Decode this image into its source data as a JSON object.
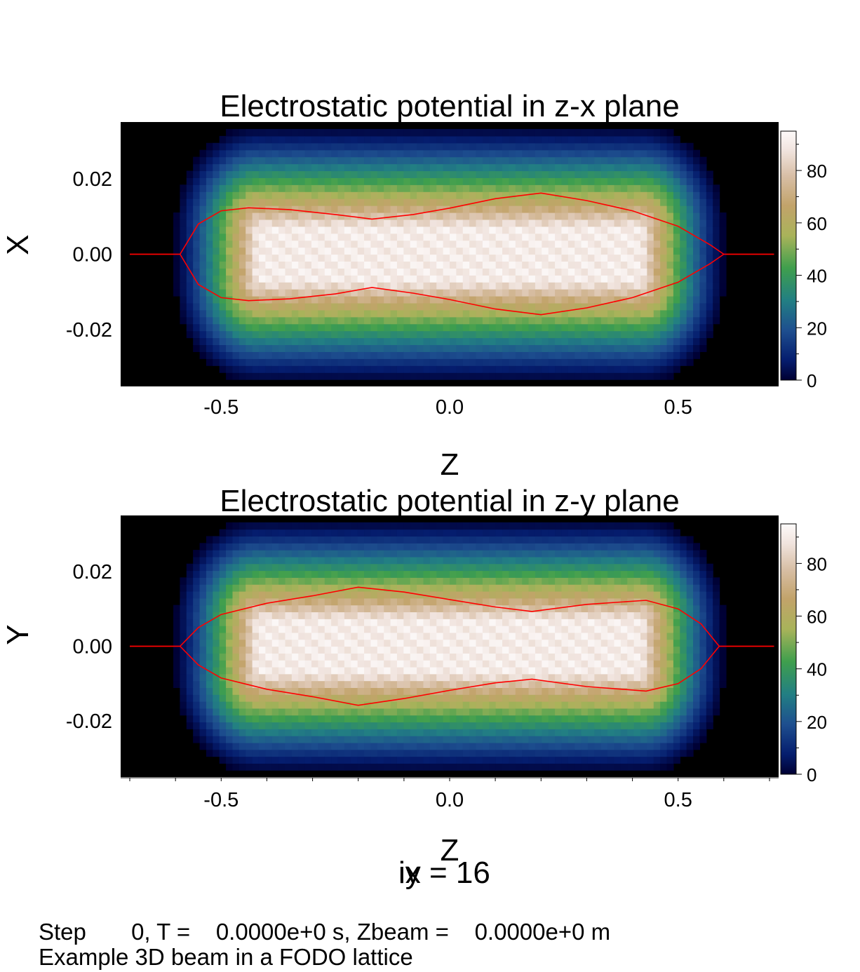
{
  "chart_data": [
    {
      "type": "heatmap",
      "title": "Electrostatic potential in z-x plane",
      "xlabel": "Z",
      "ylabel": "X",
      "xlim": [
        -0.72,
        0.72
      ],
      "ylim": [
        -0.035,
        0.035
      ],
      "x_ticks": [
        -0.5,
        0.0,
        0.5
      ],
      "x_tick_labels": [
        "-0.5",
        "0.0",
        "0.5"
      ],
      "y_ticks": [
        0.02,
        0.0,
        -0.02
      ],
      "y_tick_labels": [
        "0.02",
        "0.00",
        "-0.02"
      ],
      "colorbar": {
        "min": 0,
        "max": 95,
        "ticks": [
          0,
          20,
          40,
          60,
          80
        ],
        "tick_labels": [
          "0",
          "20",
          "40",
          "60",
          "80"
        ]
      },
      "field": {
        "peak": 94,
        "z_half_length": 0.6,
        "core_z_half_length": 0.42,
        "core_x_half_width": 0.007,
        "edge_x_half_width": 0.034
      },
      "contour": {
        "color": "#ff0000",
        "upper": [
          [
            -0.7,
            0.0
          ],
          [
            -0.59,
            0.0
          ],
          [
            -0.55,
            0.008
          ],
          [
            -0.5,
            0.0115
          ],
          [
            -0.44,
            0.0123
          ],
          [
            -0.35,
            0.0118
          ],
          [
            -0.25,
            0.0105
          ],
          [
            -0.17,
            0.0093
          ],
          [
            -0.08,
            0.0105
          ],
          [
            0.0,
            0.0122
          ],
          [
            0.1,
            0.0147
          ],
          [
            0.2,
            0.0162
          ],
          [
            0.3,
            0.0142
          ],
          [
            0.4,
            0.0115
          ],
          [
            0.5,
            0.0074
          ],
          [
            0.57,
            0.0025
          ],
          [
            0.6,
            0.0
          ],
          [
            0.71,
            0.0
          ]
        ],
        "lower": [
          [
            -0.7,
            0.0
          ],
          [
            -0.59,
            0.0
          ],
          [
            -0.55,
            -0.008
          ],
          [
            -0.5,
            -0.0115
          ],
          [
            -0.44,
            -0.0123
          ],
          [
            -0.35,
            -0.0118
          ],
          [
            -0.25,
            -0.0105
          ],
          [
            -0.17,
            -0.0088
          ],
          [
            -0.08,
            -0.0103
          ],
          [
            0.0,
            -0.012
          ],
          [
            0.1,
            -0.0145
          ],
          [
            0.2,
            -0.016
          ],
          [
            0.3,
            -0.0142
          ],
          [
            0.4,
            -0.0115
          ],
          [
            0.5,
            -0.0074
          ],
          [
            0.57,
            -0.0025
          ],
          [
            0.6,
            0.0
          ],
          [
            0.71,
            0.0
          ]
        ]
      }
    },
    {
      "type": "heatmap",
      "title": "Electrostatic potential in z-y plane",
      "xlabel": "Z",
      "ylabel": "Y",
      "xlim": [
        -0.72,
        0.72
      ],
      "ylim": [
        -0.035,
        0.035
      ],
      "x_ticks": [
        -0.5,
        0.0,
        0.5
      ],
      "x_tick_labels": [
        "-0.5",
        "0.0",
        "0.5"
      ],
      "y_ticks": [
        0.02,
        0.0,
        -0.02
      ],
      "y_tick_labels": [
        "0.02",
        "0.00",
        "-0.02"
      ],
      "colorbar": {
        "min": 0,
        "max": 95,
        "ticks": [
          0,
          20,
          40,
          60,
          80
        ],
        "tick_labels": [
          "0",
          "20",
          "40",
          "60",
          "80"
        ]
      },
      "field": {
        "peak": 94,
        "z_half_length": 0.6,
        "core_z_half_length": 0.42,
        "core_x_half_width": 0.007,
        "edge_x_half_width": 0.034
      },
      "contour": {
        "color": "#ff0000",
        "upper": [
          [
            -0.7,
            0.0
          ],
          [
            -0.59,
            0.0
          ],
          [
            -0.55,
            0.005
          ],
          [
            -0.5,
            0.0085
          ],
          [
            -0.4,
            0.0115
          ],
          [
            -0.3,
            0.0135
          ],
          [
            -0.2,
            0.0158
          ],
          [
            -0.1,
            0.0145
          ],
          [
            0.0,
            0.0125
          ],
          [
            0.1,
            0.0105
          ],
          [
            0.18,
            0.0093
          ],
          [
            0.3,
            0.0112
          ],
          [
            0.43,
            0.0123
          ],
          [
            0.5,
            0.01
          ],
          [
            0.55,
            0.006
          ],
          [
            0.59,
            0.0
          ],
          [
            0.71,
            0.0
          ]
        ],
        "lower": [
          [
            -0.7,
            0.0
          ],
          [
            -0.59,
            0.0
          ],
          [
            -0.55,
            -0.005
          ],
          [
            -0.5,
            -0.0085
          ],
          [
            -0.4,
            -0.0115
          ],
          [
            -0.3,
            -0.0135
          ],
          [
            -0.2,
            -0.0158
          ],
          [
            -0.1,
            -0.014
          ],
          [
            0.0,
            -0.0118
          ],
          [
            0.1,
            -0.0098
          ],
          [
            0.18,
            -0.0088
          ],
          [
            0.3,
            -0.0108
          ],
          [
            0.43,
            -0.012
          ],
          [
            0.5,
            -0.01
          ],
          [
            0.55,
            -0.006
          ],
          [
            0.59,
            0.0
          ],
          [
            0.71,
            0.0
          ]
        ]
      }
    }
  ],
  "index_label": {
    "overlay_a": "ix = 16",
    "overlay_b": "iy"
  },
  "footer": {
    "line1": "Step       0, T =    0.0000e+0 s, Zbeam =    0.0000e+0 m",
    "line2": "Example 3D beam in a FODO lattice"
  },
  "colors": {
    "contour": "#ff0000",
    "background": "#000000"
  }
}
